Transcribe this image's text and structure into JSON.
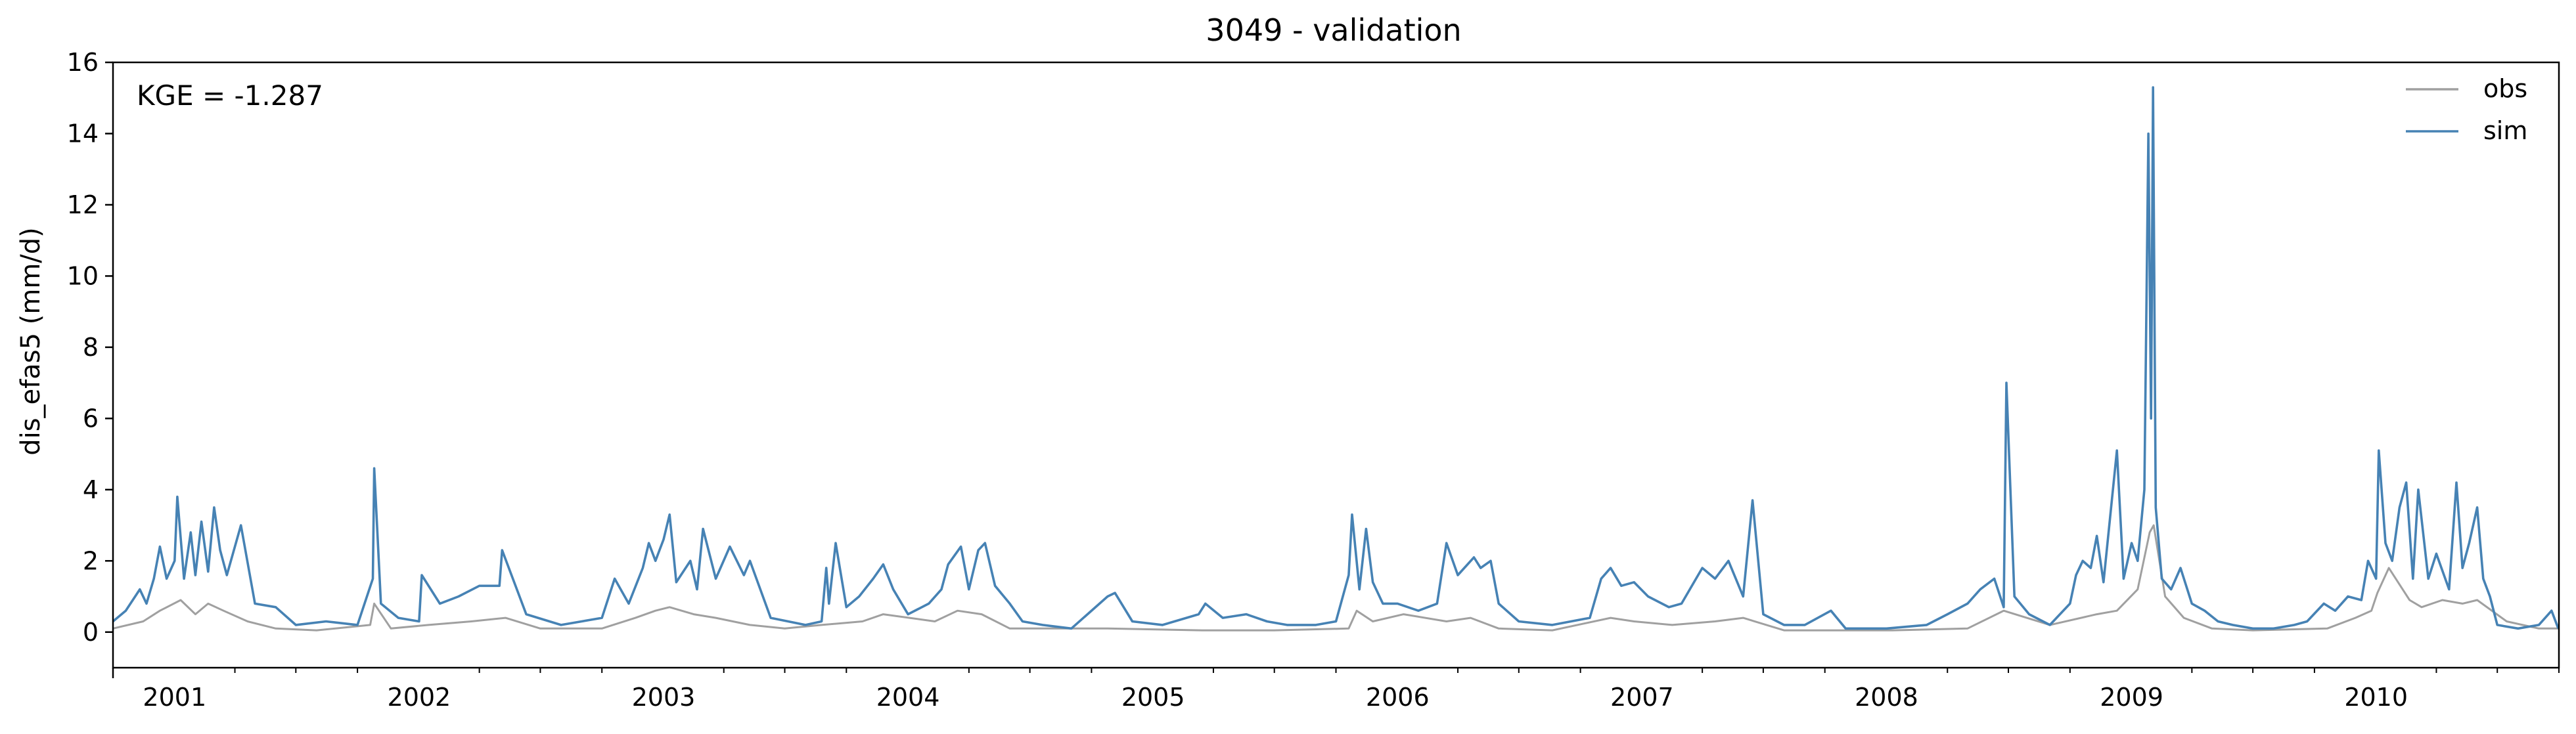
{
  "chart_data": {
    "type": "line",
    "title": "3049 - validation",
    "xlabel": "",
    "ylabel": "dis_efas5 (mm/d)",
    "annotation": "KGE = -1.287",
    "xlim": [
      "2000-10-01",
      "2010-10-01"
    ],
    "ylim": [
      -1,
      16
    ],
    "yticks": [
      0,
      2,
      4,
      6,
      8,
      10,
      12,
      14,
      16
    ],
    "xticks": [
      "2001",
      "2002",
      "2003",
      "2004",
      "2005",
      "2006",
      "2007",
      "2008",
      "2009",
      "2010"
    ],
    "grid": false,
    "legend": "top-right",
    "colors": {
      "obs": "#a0a0a0",
      "sim": "#4682b4"
    },
    "series": [
      {
        "name": "obs",
        "x": [
          "2000-10-01",
          "2000-11-15",
          "2000-12-10",
          "2001-01-10",
          "2001-02-01",
          "2001-02-20",
          "2001-03-15",
          "2001-04-20",
          "2001-06-01",
          "2001-08-01",
          "2001-10-20",
          "2001-10-26",
          "2001-11-20",
          "2002-01-15",
          "2002-03-20",
          "2002-05-10",
          "2002-07-01",
          "2002-10-01",
          "2002-11-20",
          "2002-12-20",
          "2003-01-10",
          "2003-02-15",
          "2003-03-20",
          "2003-05-10",
          "2003-07-01",
          "2003-08-25",
          "2003-10-25",
          "2003-11-25",
          "2004-02-10",
          "2004-03-15",
          "2004-04-20",
          "2004-06-01",
          "2004-10-25",
          "2005-03-15",
          "2005-05-20",
          "2005-07-01",
          "2005-10-20",
          "2005-11-01",
          "2005-11-25",
          "2006-01-10",
          "2006-03-15",
          "2006-04-20",
          "2006-06-01",
          "2006-08-20",
          "2006-11-15",
          "2006-12-20",
          "2007-02-15",
          "2007-04-20",
          "2007-06-01",
          "2007-08-01",
          "2007-10-10",
          "2008-01-10",
          "2008-05-01",
          "2008-06-24",
          "2008-09-01",
          "2008-11-10",
          "2008-12-10",
          "2009-01-10",
          "2009-01-28",
          "2009-02-03",
          "2009-02-20",
          "2009-03-20",
          "2009-05-01",
          "2009-07-01",
          "2009-10-20",
          "2009-12-01",
          "2009-12-25",
          "2010-01-03",
          "2010-01-20",
          "2010-02-20",
          "2010-03-10",
          "2010-04-10",
          "2010-05-10",
          "2010-06-01",
          "2010-07-15",
          "2010-09-01",
          "2010-09-30"
        ],
        "values": [
          0.1,
          0.3,
          0.6,
          0.9,
          0.5,
          0.8,
          0.6,
          0.3,
          0.1,
          0.05,
          0.2,
          0.8,
          0.1,
          0.2,
          0.3,
          0.4,
          0.1,
          0.1,
          0.4,
          0.6,
          0.7,
          0.5,
          0.4,
          0.2,
          0.1,
          0.2,
          0.3,
          0.5,
          0.3,
          0.6,
          0.5,
          0.1,
          0.1,
          0.05,
          0.05,
          0.05,
          0.1,
          0.6,
          0.3,
          0.5,
          0.3,
          0.4,
          0.1,
          0.05,
          0.4,
          0.3,
          0.2,
          0.3,
          0.4,
          0.05,
          0.05,
          0.05,
          0.1,
          0.6,
          0.2,
          0.5,
          0.6,
          1.2,
          2.8,
          3.0,
          1.0,
          0.4,
          0.1,
          0.05,
          0.1,
          0.4,
          0.6,
          1.1,
          1.8,
          0.9,
          0.7,
          0.9,
          0.8,
          0.9,
          0.3,
          0.1,
          0.1
        ]
      },
      {
        "name": "sim",
        "x": [
          "2000-10-01",
          "2000-10-20",
          "2000-11-10",
          "2000-11-20",
          "2000-12-01",
          "2000-12-10",
          "2000-12-20",
          "2001-01-01",
          "2001-01-05",
          "2001-01-15",
          "2001-01-25",
          "2001-02-01",
          "2001-02-10",
          "2001-02-20",
          "2001-03-01",
          "2001-03-10",
          "2001-03-20",
          "2001-04-10",
          "2001-05-01",
          "2001-06-01",
          "2001-07-01",
          "2001-08-15",
          "2001-10-01",
          "2001-10-24",
          "2001-10-26",
          "2001-11-05",
          "2001-12-01",
          "2002-01-01",
          "2002-01-05",
          "2002-02-01",
          "2002-03-01",
          "2002-04-01",
          "2002-05-01",
          "2002-05-05",
          "2002-06-10",
          "2002-08-01",
          "2002-10-01",
          "2002-10-20",
          "2002-11-10",
          "2002-12-01",
          "2002-12-10",
          "2002-12-20",
          "2003-01-01",
          "2003-01-10",
          "2003-01-20",
          "2003-02-10",
          "2003-02-20",
          "2003-03-01",
          "2003-03-20",
          "2003-04-10",
          "2003-05-01",
          "2003-05-10",
          "2003-06-10",
          "2003-08-01",
          "2003-08-25",
          "2003-09-01",
          "2003-09-05",
          "2003-09-15",
          "2003-10-01",
          "2003-10-20",
          "2003-11-10",
          "2003-11-25",
          "2003-12-10",
          "2004-01-01",
          "2004-02-01",
          "2004-02-20",
          "2004-03-01",
          "2004-03-20",
          "2004-04-01",
          "2004-04-15",
          "2004-04-25",
          "2004-05-10",
          "2004-06-01",
          "2004-06-20",
          "2004-07-20",
          "2004-09-01",
          "2004-10-25",
          "2004-11-05",
          "2004-12-01",
          "2005-01-15",
          "2005-03-10",
          "2005-03-20",
          "2005-04-15",
          "2005-05-20",
          "2005-06-20",
          "2005-07-20",
          "2005-09-01",
          "2005-10-01",
          "2005-10-20",
          "2005-10-25",
          "2005-11-05",
          "2005-11-15",
          "2005-11-25",
          "2005-12-10",
          "2006-01-01",
          "2006-02-01",
          "2006-03-01",
          "2006-03-15",
          "2006-04-01",
          "2006-04-25",
          "2006-05-05",
          "2006-05-20",
          "2006-06-01",
          "2006-07-01",
          "2006-08-20",
          "2006-10-15",
          "2006-11-01",
          "2006-11-15",
          "2006-12-01",
          "2006-12-20",
          "2007-01-10",
          "2007-02-10",
          "2007-03-01",
          "2007-04-01",
          "2007-04-20",
          "2007-05-10",
          "2007-06-01",
          "2007-06-15",
          "2007-07-01",
          "2007-08-01",
          "2007-09-01",
          "2007-10-10",
          "2007-11-01",
          "2008-01-01",
          "2008-03-01",
          "2008-04-01",
          "2008-05-01",
          "2008-05-20",
          "2008-06-10",
          "2008-06-24",
          "2008-06-28",
          "2008-07-10",
          "2008-08-01",
          "2008-09-01",
          "2008-10-01",
          "2008-10-10",
          "2008-10-20",
          "2008-11-01",
          "2008-11-10",
          "2008-11-20",
          "2008-12-10",
          "2008-12-20",
          "2009-01-01",
          "2009-01-10",
          "2009-01-20",
          "2009-01-26",
          "2009-01-30",
          "2009-02-02",
          "2009-02-06",
          "2009-02-15",
          "2009-03-01",
          "2009-03-15",
          "2009-04-01",
          "2009-04-20",
          "2009-05-10",
          "2009-06-01",
          "2009-07-01",
          "2009-08-01",
          "2009-09-01",
          "2009-09-20",
          "2009-10-15",
          "2009-11-01",
          "2009-11-20",
          "2009-12-10",
          "2009-12-20",
          "2010-01-01",
          "2010-01-05",
          "2010-01-15",
          "2010-01-25",
          "2010-02-05",
          "2010-02-15",
          "2010-02-25",
          "2010-03-05",
          "2010-03-20",
          "2010-04-01",
          "2010-04-20",
          "2010-05-01",
          "2010-05-10",
          "2010-05-20",
          "2010-06-01",
          "2010-06-10",
          "2010-06-20",
          "2010-07-01",
          "2010-08-01",
          "2010-09-01",
          "2010-09-20",
          "2010-09-30"
        ],
        "values": [
          0.3,
          0.6,
          1.2,
          0.8,
          1.5,
          2.4,
          1.5,
          2.0,
          3.8,
          1.5,
          2.8,
          1.6,
          3.1,
          1.7,
          3.5,
          2.3,
          1.6,
          3.0,
          0.8,
          0.7,
          0.2,
          0.3,
          0.2,
          1.5,
          4.6,
          0.8,
          0.4,
          0.3,
          1.6,
          0.8,
          1.0,
          1.3,
          1.3,
          2.3,
          0.5,
          0.2,
          0.4,
          1.5,
          0.8,
          1.8,
          2.5,
          2.0,
          2.6,
          3.3,
          1.4,
          2.0,
          1.2,
          2.9,
          1.5,
          2.4,
          1.6,
          2.0,
          0.4,
          0.2,
          0.3,
          1.8,
          0.8,
          2.5,
          0.7,
          1.0,
          1.5,
          1.9,
          1.2,
          0.5,
          0.8,
          1.2,
          1.9,
          2.4,
          1.2,
          2.3,
          2.5,
          1.3,
          0.8,
          0.3,
          0.2,
          0.1,
          1.0,
          1.1,
          0.3,
          0.2,
          0.5,
          0.8,
          0.4,
          0.5,
          0.3,
          0.2,
          0.2,
          0.3,
          1.6,
          3.3,
          1.2,
          2.9,
          1.4,
          0.8,
          0.8,
          0.6,
          0.8,
          2.5,
          1.6,
          2.1,
          1.8,
          2.0,
          0.8,
          0.3,
          0.2,
          0.4,
          1.5,
          1.8,
          1.3,
          1.4,
          1.0,
          0.7,
          0.8,
          1.8,
          1.5,
          2.0,
          1.0,
          3.7,
          0.5,
          0.2,
          0.2,
          0.6,
          0.1,
          0.1,
          0.2,
          0.5,
          0.8,
          1.2,
          1.5,
          0.7,
          7.0,
          1.0,
          0.5,
          0.2,
          0.8,
          1.6,
          2.0,
          1.8,
          2.7,
          1.4,
          5.1,
          1.5,
          2.5,
          2.0,
          4.0,
          14.0,
          6.0,
          15.3,
          3.5,
          1.5,
          1.2,
          1.8,
          0.8,
          0.6,
          0.3,
          0.2,
          0.1,
          0.1,
          0.2,
          0.3,
          0.8,
          0.6,
          1.0,
          0.9,
          2.0,
          1.5,
          5.1,
          2.5,
          2.0,
          3.5,
          4.2,
          1.5,
          4.0,
          1.5,
          2.2,
          1.2,
          4.2,
          1.8,
          2.5,
          3.5,
          1.5,
          1.0,
          0.2,
          0.1,
          0.2,
          0.6,
          0.1
        ]
      }
    ]
  }
}
